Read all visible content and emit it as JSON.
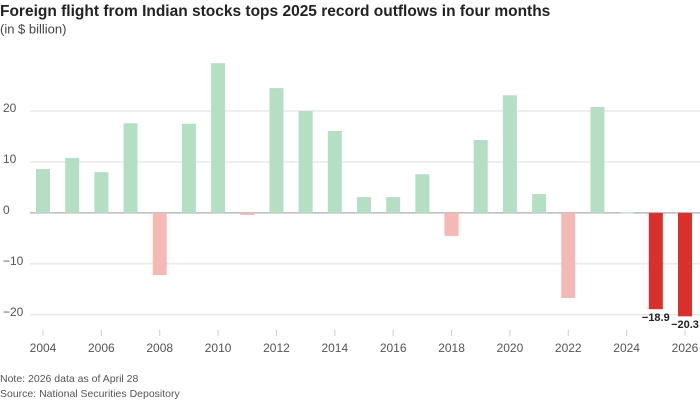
{
  "chart_data": {
    "type": "bar",
    "title": "Foreign flight from Indian stocks tops 2025 record outflows in four months",
    "subtitle": "(in $ billion)",
    "categories": [
      "2004",
      null,
      "2006",
      null,
      "2008",
      null,
      "2010",
      null,
      "2012",
      null,
      "2014",
      null,
      "2016",
      null,
      "2018",
      null,
      "2020",
      null,
      "2022",
      null,
      "2024",
      null,
      "2026"
    ],
    "values": [
      8.6,
      10.8,
      8.0,
      17.6,
      -12.2,
      17.5,
      29.4,
      -0.4,
      24.5,
      20.0,
      16.1,
      3.1,
      3.1,
      7.6,
      -4.5,
      14.3,
      23.1,
      3.7,
      -16.7,
      20.8,
      0.1,
      -18.9,
      -20.3
    ],
    "value_labels": [
      null,
      null,
      null,
      null,
      null,
      null,
      null,
      null,
      null,
      null,
      null,
      null,
      null,
      null,
      null,
      null,
      null,
      null,
      null,
      null,
      null,
      "−18.9",
      "−20.3"
    ],
    "colors": [
      "#b5dfc3",
      "#b5dfc3",
      "#b5dfc3",
      "#b5dfc3",
      "#f4b8b5",
      "#b5dfc3",
      "#b5dfc3",
      "#f4b8b5",
      "#b5dfc3",
      "#b5dfc3",
      "#b5dfc3",
      "#b5dfc3",
      "#b5dfc3",
      "#b5dfc3",
      "#f4b8b5",
      "#b5dfc3",
      "#b5dfc3",
      "#b5dfc3",
      "#f4b8b5",
      "#b5dfc3",
      "#b5dfc3",
      "#d9302b",
      "#d9302b"
    ],
    "ylim": [
      -22,
      31
    ],
    "yticks": [
      {
        "value": -20,
        "label": "−20"
      },
      {
        "value": -10,
        "label": "−10"
      },
      0,
      10,
      20
    ],
    "grid": true,
    "notes": [
      "Note: 2026 data as of April 28",
      "Source: National Securities Depository"
    ]
  }
}
